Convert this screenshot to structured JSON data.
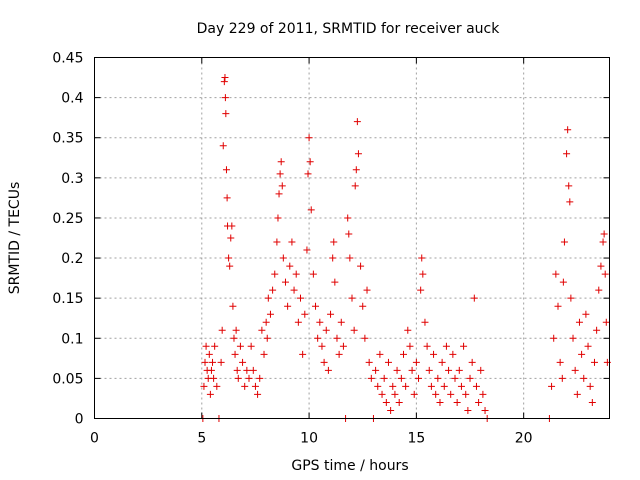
{
  "chart_data": {
    "type": "scatter",
    "title": "Day 229 of 2011, SRMTID for receiver auck",
    "xlabel": "GPS time / hours",
    "ylabel": "SRMTID / TECUs",
    "xlim": [
      0,
      24
    ],
    "ylim": [
      0,
      0.45
    ],
    "xticks": [
      0,
      5,
      10,
      15,
      20
    ],
    "xtick_labels": [
      "0",
      "5",
      "10",
      "15",
      "20"
    ],
    "yticks": [
      0,
      0.05,
      0.1,
      0.15,
      0.2,
      0.25,
      0.3,
      0.35,
      0.4,
      0.45
    ],
    "ytick_labels": [
      "0",
      "0.05",
      "0.1",
      "0.15",
      "0.2",
      "0.25",
      "0.3",
      "0.35",
      "0.4",
      "0.45"
    ],
    "grid": true,
    "marker": "+",
    "marker_color": "#e00000",
    "series": [
      {
        "name": "SRMTID",
        "points": [
          [
            5.05,
            0.0
          ],
          [
            5.1,
            0.04
          ],
          [
            5.15,
            0.07
          ],
          [
            5.2,
            0.09
          ],
          [
            5.25,
            0.06
          ],
          [
            5.3,
            0.05
          ],
          [
            5.35,
            0.08
          ],
          [
            5.4,
            0.03
          ],
          [
            5.45,
            0.06
          ],
          [
            5.5,
            0.07
          ],
          [
            5.55,
            0.05
          ],
          [
            5.6,
            0.09
          ],
          [
            5.7,
            0.04
          ],
          [
            5.8,
            0.0
          ],
          [
            5.9,
            0.07
          ],
          [
            5.95,
            0.11
          ],
          [
            6.0,
            0.34
          ],
          [
            6.05,
            0.42
          ],
          [
            6.08,
            0.425
          ],
          [
            6.1,
            0.4
          ],
          [
            6.12,
            0.38
          ],
          [
            6.15,
            0.31
          ],
          [
            6.18,
            0.275
          ],
          [
            6.2,
            0.24
          ],
          [
            6.25,
            0.2
          ],
          [
            6.3,
            0.19
          ],
          [
            6.35,
            0.225
          ],
          [
            6.4,
            0.24
          ],
          [
            6.45,
            0.14
          ],
          [
            6.5,
            0.1
          ],
          [
            6.55,
            0.08
          ],
          [
            6.6,
            0.11
          ],
          [
            6.65,
            0.06
          ],
          [
            6.7,
            0.05
          ],
          [
            6.8,
            0.09
          ],
          [
            6.9,
            0.07
          ],
          [
            7.0,
            0.04
          ],
          [
            7.1,
            0.06
          ],
          [
            7.2,
            0.05
          ],
          [
            7.3,
            0.09
          ],
          [
            7.4,
            0.06
          ],
          [
            7.5,
            0.04
          ],
          [
            7.6,
            0.03
          ],
          [
            7.7,
            0.05
          ],
          [
            7.8,
            0.11
          ],
          [
            7.9,
            0.08
          ],
          [
            8.0,
            0.12
          ],
          [
            8.05,
            0.1
          ],
          [
            8.1,
            0.15
          ],
          [
            8.2,
            0.13
          ],
          [
            8.3,
            0.16
          ],
          [
            8.4,
            0.18
          ],
          [
            8.5,
            0.22
          ],
          [
            8.55,
            0.25
          ],
          [
            8.6,
            0.28
          ],
          [
            8.65,
            0.305
          ],
          [
            8.7,
            0.32
          ],
          [
            8.75,
            0.29
          ],
          [
            8.8,
            0.2
          ],
          [
            8.9,
            0.17
          ],
          [
            9.0,
            0.14
          ],
          [
            9.1,
            0.19
          ],
          [
            9.2,
            0.22
          ],
          [
            9.3,
            0.16
          ],
          [
            9.4,
            0.18
          ],
          [
            9.5,
            0.12
          ],
          [
            9.6,
            0.15
          ],
          [
            9.7,
            0.08
          ],
          [
            9.8,
            0.13
          ],
          [
            9.9,
            0.21
          ],
          [
            9.95,
            0.305
          ],
          [
            10.0,
            0.35
          ],
          [
            10.05,
            0.32
          ],
          [
            10.1,
            0.26
          ],
          [
            10.2,
            0.18
          ],
          [
            10.3,
            0.14
          ],
          [
            10.4,
            0.1
          ],
          [
            10.5,
            0.12
          ],
          [
            10.6,
            0.09
          ],
          [
            10.7,
            0.07
          ],
          [
            10.8,
            0.11
          ],
          [
            10.9,
            0.06
          ],
          [
            11.0,
            0.13
          ],
          [
            11.1,
            0.2
          ],
          [
            11.15,
            0.22
          ],
          [
            11.2,
            0.17
          ],
          [
            11.3,
            0.1
          ],
          [
            11.4,
            0.08
          ],
          [
            11.5,
            0.12
          ],
          [
            11.6,
            0.09
          ],
          [
            11.7,
            0.0
          ],
          [
            11.8,
            0.25
          ],
          [
            11.85,
            0.23
          ],
          [
            11.9,
            0.2
          ],
          [
            12.0,
            0.15
          ],
          [
            12.1,
            0.11
          ],
          [
            12.15,
            0.29
          ],
          [
            12.2,
            0.31
          ],
          [
            12.25,
            0.37
          ],
          [
            12.3,
            0.33
          ],
          [
            12.4,
            0.19
          ],
          [
            12.5,
            0.14
          ],
          [
            12.6,
            0.1
          ],
          [
            12.7,
            0.16
          ],
          [
            12.8,
            0.07
          ],
          [
            12.9,
            0.05
          ],
          [
            13.0,
            0.0
          ],
          [
            13.1,
            0.06
          ],
          [
            13.2,
            0.04
          ],
          [
            13.3,
            0.08
          ],
          [
            13.4,
            0.03
          ],
          [
            13.5,
            0.05
          ],
          [
            13.6,
            0.02
          ],
          [
            13.7,
            0.07
          ],
          [
            13.8,
            0.01
          ],
          [
            13.9,
            0.04
          ],
          [
            14.0,
            0.03
          ],
          [
            14.1,
            0.06
          ],
          [
            14.2,
            0.02
          ],
          [
            14.3,
            0.05
          ],
          [
            14.4,
            0.08
          ],
          [
            14.5,
            0.04
          ],
          [
            14.6,
            0.11
          ],
          [
            14.7,
            0.09
          ],
          [
            14.8,
            0.06
          ],
          [
            14.9,
            0.03
          ],
          [
            15.0,
            0.07
          ],
          [
            15.1,
            0.05
          ],
          [
            15.2,
            0.16
          ],
          [
            15.25,
            0.2
          ],
          [
            15.3,
            0.18
          ],
          [
            15.4,
            0.12
          ],
          [
            15.5,
            0.09
          ],
          [
            15.6,
            0.06
          ],
          [
            15.7,
            0.04
          ],
          [
            15.8,
            0.08
          ],
          [
            15.9,
            0.03
          ],
          [
            16.0,
            0.05
          ],
          [
            16.1,
            0.02
          ],
          [
            16.2,
            0.07
          ],
          [
            16.3,
            0.04
          ],
          [
            16.4,
            0.09
          ],
          [
            16.5,
            0.06
          ],
          [
            16.6,
            0.03
          ],
          [
            16.7,
            0.08
          ],
          [
            16.8,
            0.05
          ],
          [
            16.9,
            0.02
          ],
          [
            17.0,
            0.06
          ],
          [
            17.1,
            0.04
          ],
          [
            17.2,
            0.09
          ],
          [
            17.3,
            0.03
          ],
          [
            17.4,
            0.01
          ],
          [
            17.5,
            0.05
          ],
          [
            17.6,
            0.07
          ],
          [
            17.7,
            0.15
          ],
          [
            17.8,
            0.04
          ],
          [
            17.9,
            0.02
          ],
          [
            18.0,
            0.06
          ],
          [
            18.1,
            0.03
          ],
          [
            18.2,
            0.01
          ],
          [
            18.3,
            0.0
          ],
          [
            21.2,
            0.0
          ],
          [
            21.3,
            0.04
          ],
          [
            21.4,
            0.1
          ],
          [
            21.5,
            0.18
          ],
          [
            21.6,
            0.14
          ],
          [
            21.7,
            0.07
          ],
          [
            21.8,
            0.05
          ],
          [
            21.85,
            0.17
          ],
          [
            21.9,
            0.22
          ],
          [
            22.0,
            0.33
          ],
          [
            22.05,
            0.36
          ],
          [
            22.1,
            0.29
          ],
          [
            22.15,
            0.27
          ],
          [
            22.2,
            0.15
          ],
          [
            22.3,
            0.1
          ],
          [
            22.4,
            0.06
          ],
          [
            22.5,
            0.03
          ],
          [
            22.6,
            0.12
          ],
          [
            22.7,
            0.08
          ],
          [
            22.8,
            0.05
          ],
          [
            22.9,
            0.13
          ],
          [
            23.0,
            0.09
          ],
          [
            23.1,
            0.04
          ],
          [
            23.2,
            0.02
          ],
          [
            23.3,
            0.07
          ],
          [
            23.4,
            0.11
          ],
          [
            23.5,
            0.16
          ],
          [
            23.6,
            0.19
          ],
          [
            23.7,
            0.22
          ],
          [
            23.75,
            0.23
          ],
          [
            23.8,
            0.18
          ],
          [
            23.85,
            0.12
          ],
          [
            23.9,
            0.07
          ]
        ]
      }
    ]
  }
}
